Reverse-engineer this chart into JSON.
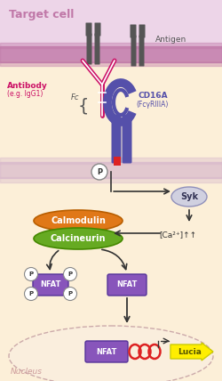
{
  "bg_color": "#fcefd8",
  "target_bg_color": "#edd5e8",
  "target_membrane_color": "#c078a8",
  "jurkat_membrane_color": "#d8b8cc",
  "antibody_color": "#cc1166",
  "cd16a_color": "#5550aa",
  "syk_bg": "#d0d0e0",
  "syk_edge": "#9090bb",
  "calmodulin_color": "#e07818",
  "calcineurin_color": "#66aa22",
  "nfat_color": "#8855bb",
  "nfat_edge": "#553399",
  "lucia_color": "#ffee00",
  "lucia_edge": "#cccc00",
  "p_bg": "#ffffff",
  "arrow_color": "#333333",
  "red_marker": "#dd2222",
  "antigen_color": "#555555",
  "nucleus_edge": "#ccaaaa",
  "title": "Target cell",
  "nucleus_label": "Nucleus",
  "antibody_label1": "Antibody",
  "antibody_label2": "(e.g. IgG1)",
  "fc_label": "Fc",
  "cd16a_label1": "CD16A",
  "cd16a_label2": "(FcγRIIIA)",
  "antigen_label": "Antigen",
  "calmodulin_label": "Calmodulin",
  "calcineurin_label": "Calcineurin",
  "nfat_label": "NFAT",
  "lucia_label": "Lucia",
  "syk_label": "Syk",
  "ca_label": "[Ca²⁺]↑↑"
}
